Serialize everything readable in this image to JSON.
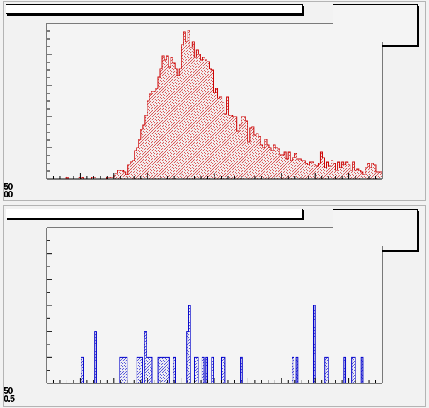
{
  "canvas": {
    "background": "#f2f2f2"
  },
  "panels": {
    "top": {
      "title": "",
      "corner_labels": [
        "50",
        "00"
      ],
      "color": "#cc0000"
    },
    "bottom": {
      "title": "",
      "corner_labels": [
        "50",
        "0.5"
      ],
      "color": "#0000cc"
    }
  },
  "chart_data": [
    {
      "type": "bar",
      "histogram": true,
      "title": "",
      "xlabel": "",
      "ylabel": "",
      "ylim": [
        0,
        110
      ],
      "line_color": "#cc0000",
      "fill": "hatched",
      "values": [
        0,
        0,
        0,
        0,
        0,
        0,
        0,
        0,
        0,
        1,
        0,
        0,
        0,
        0,
        0,
        1,
        1,
        0,
        0,
        0,
        0,
        1,
        1,
        0,
        0,
        0,
        0,
        0,
        1,
        1,
        1,
        2,
        4,
        6,
        6,
        6,
        5,
        3,
        10,
        12,
        13,
        20,
        22,
        28,
        35,
        38,
        45,
        55,
        60,
        62,
        62,
        64,
        72,
        78,
        87,
        84,
        87,
        79,
        86,
        82,
        78,
        73,
        78,
        95,
        104,
        97,
        105,
        93,
        97,
        86,
        91,
        88,
        84,
        86,
        84,
        83,
        78,
        77,
        61,
        64,
        57,
        58,
        54,
        46,
        58,
        45,
        45,
        44,
        44,
        34,
        38,
        44,
        44,
        41,
        26,
        36,
        37,
        31,
        32,
        30,
        24,
        22,
        28,
        24,
        22,
        20,
        24,
        22,
        21,
        17,
        17,
        19,
        14,
        19,
        13,
        15,
        18,
        14,
        14,
        13,
        13,
        11,
        10,
        12,
        12,
        10,
        9,
        11,
        19,
        15,
        8,
        12,
        9,
        13,
        11,
        6,
        12,
        8,
        12,
        10,
        12,
        10,
        6,
        12,
        6,
        7,
        6,
        5,
        3,
        8,
        11,
        8,
        11,
        10,
        5,
        5,
        5
      ]
    },
    {
      "type": "bar",
      "histogram": true,
      "title": "",
      "xlabel": "",
      "ylabel": "",
      "ylim": [
        0,
        12
      ],
      "line_color": "#0000cc",
      "fill": "hatched",
      "values": [
        0,
        0,
        0,
        0,
        0,
        0,
        0,
        0,
        0,
        0,
        0,
        0,
        0,
        0,
        0,
        0,
        0,
        0,
        2,
        0,
        0,
        0,
        0,
        0,
        0,
        4,
        0,
        0,
        0,
        0,
        0,
        0,
        0,
        0,
        0,
        0,
        0,
        0,
        2,
        2,
        2,
        2,
        0,
        0,
        0,
        0,
        0,
        2,
        2,
        2,
        0,
        4,
        2,
        2,
        2,
        0,
        0,
        0,
        2,
        2,
        2,
        2,
        2,
        2,
        0,
        0,
        2,
        0,
        0,
        0,
        0,
        0,
        0,
        4,
        6,
        0,
        0,
        2,
        2,
        0,
        0,
        2,
        0,
        2,
        0,
        0,
        2,
        0,
        0,
        0,
        0,
        2,
        2,
        0,
        0,
        0,
        0,
        0,
        0,
        0,
        0,
        2,
        0,
        0,
        0,
        0,
        0,
        0,
        0,
        0,
        0,
        0,
        0,
        0,
        0,
        0,
        0,
        0,
        0,
        0,
        0,
        0,
        0,
        0,
        0,
        0,
        0,
        0,
        2,
        0,
        2,
        0,
        0,
        0,
        0,
        0,
        0,
        0,
        0,
        6,
        0,
        0,
        0,
        0,
        0,
        2,
        2,
        0,
        0,
        0,
        0,
        0,
        0,
        0,
        0,
        2,
        0,
        0,
        0,
        2,
        2,
        0,
        0,
        0,
        2,
        0,
        0,
        0,
        0,
        0,
        0,
        0,
        0,
        0,
        0
      ]
    }
  ]
}
